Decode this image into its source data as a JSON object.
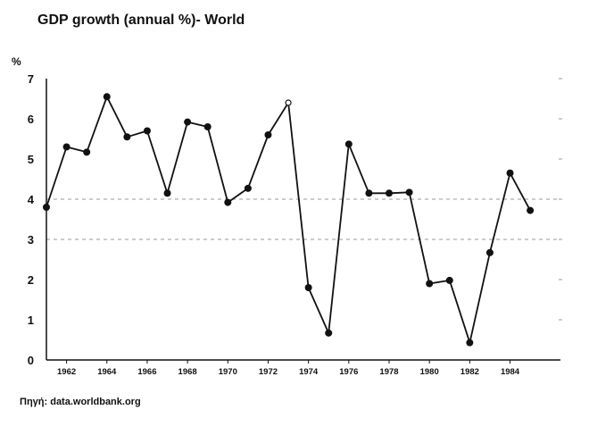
{
  "title": "GDP growth (annual %)- World",
  "source": "Πηγή: data.worldbank.org",
  "chart_data": {
    "type": "line",
    "title": "GDP growth (annual %)- World",
    "ylabel": "%",
    "xlabel": "",
    "x": [
      1961,
      1962,
      1963,
      1964,
      1965,
      1966,
      1967,
      1968,
      1969,
      1970,
      1971,
      1972,
      1973,
      1974,
      1975,
      1976,
      1977,
      1978,
      1979,
      1980,
      1981,
      1982,
      1983,
      1984,
      1985
    ],
    "series": [
      {
        "name": "GDP growth (annual %)- World",
        "values": [
          3.8,
          5.3,
          5.17,
          6.55,
          5.55,
          5.7,
          4.15,
          5.92,
          5.8,
          3.92,
          4.27,
          5.6,
          6.4,
          1.8,
          0.67,
          5.37,
          4.15,
          4.15,
          4.17,
          1.9,
          1.98,
          0.43,
          2.67,
          4.65,
          3.72
        ],
        "hollow_years": [
          1973
        ]
      }
    ],
    "xticks": [
      1962,
      1964,
      1966,
      1968,
      1970,
      1972,
      1974,
      1976,
      1978,
      1980,
      1982,
      1984
    ],
    "yticks": [
      0,
      1,
      2,
      3,
      4,
      5,
      6,
      7
    ],
    "xlim": [
      1961,
      1986.5
    ],
    "ylim": [
      0,
      7
    ],
    "reference_lines": [
      3,
      4
    ],
    "line_color": "#111111",
    "grid_color": "#999999"
  }
}
